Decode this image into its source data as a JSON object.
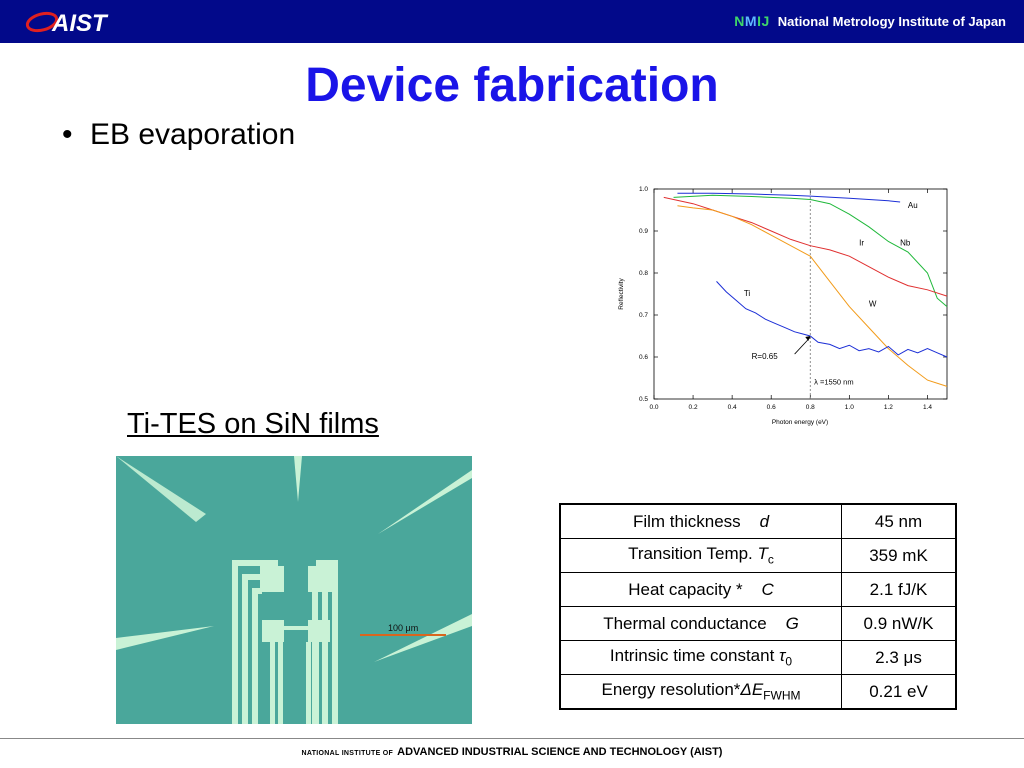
{
  "header": {
    "logo_text": "AIST",
    "nmij_mark": "NMIJ",
    "nmij_name": "National Metrology Institute of Japan"
  },
  "title": "Device fabrication",
  "bullet": "EB evaporation",
  "subheading": "Ti-TES on SiN films",
  "micrograph": {
    "scale_label": "100 μm"
  },
  "table": {
    "rows": [
      {
        "label": "Film thickness",
        "symbol": "d",
        "value": "45 nm"
      },
      {
        "label": "Transition Temp.",
        "symbol": "T",
        "sub": "c",
        "value": "359 mK"
      },
      {
        "label": "Heat capacity *",
        "symbol": "C",
        "value": "2.1 fJ/K"
      },
      {
        "label": "Thermal conductance",
        "symbol": "G",
        "value": "0.9 nW/K"
      },
      {
        "label": "Intrinsic time constant",
        "symbol": "τ",
        "sub": "0",
        "value": "2.3 μs"
      },
      {
        "label": "Energy resolution*",
        "symbol": "ΔE",
        "sub": "FWHM",
        "value": "0.21 eV"
      }
    ]
  },
  "footer": {
    "small": "NATIONAL INSTITUTE OF",
    "main": "ADVANCED INDUSTRIAL SCIENCE AND TECHNOLOGY (AIST)"
  },
  "colors": {
    "header_bg": "#02098a",
    "title": "#1a14e8",
    "micrograph_bg": "#4aa79b"
  },
  "chart_data": {
    "type": "line",
    "xlabel": "Photon energy (eV)",
    "ylabel": "Reflectivity",
    "xlim": [
      0.0,
      1.5
    ],
    "ylim": [
      0.5,
      1.0
    ],
    "xticks": [
      "0.0",
      "0.2",
      "0.4",
      "0.6",
      "0.8",
      "1.0",
      "1.2",
      "1.4"
    ],
    "yticks": [
      "0.5",
      "0.6",
      "0.7",
      "0.8",
      "0.9",
      "1.0"
    ],
    "marker_line_x": 0.8,
    "annotations": {
      "r_label": "R=0.65",
      "lambda_label": "λ =1550 nm"
    },
    "series": [
      {
        "name": "Au",
        "color": "#1c2fd6",
        "x": [
          0.12,
          0.3,
          0.5,
          0.7,
          0.8,
          1.0,
          1.2,
          1.26
        ],
        "y": [
          0.99,
          0.99,
          0.988,
          0.985,
          0.983,
          0.978,
          0.972,
          0.969
        ]
      },
      {
        "name": "Nb",
        "color": "#1fb83a",
        "x": [
          0.1,
          0.3,
          0.5,
          0.7,
          0.8,
          0.9,
          1.0,
          1.1,
          1.2,
          1.3,
          1.4,
          1.45,
          1.5
        ],
        "y": [
          0.98,
          0.985,
          0.982,
          0.978,
          0.975,
          0.965,
          0.94,
          0.91,
          0.875,
          0.85,
          0.8,
          0.74,
          0.72
        ]
      },
      {
        "name": "Ir",
        "color": "#e03030",
        "x": [
          0.05,
          0.2,
          0.3,
          0.4,
          0.5,
          0.6,
          0.7,
          0.8,
          0.9,
          1.0,
          1.1,
          1.2,
          1.3,
          1.4,
          1.5
        ],
        "y": [
          0.98,
          0.965,
          0.95,
          0.935,
          0.92,
          0.9,
          0.88,
          0.865,
          0.855,
          0.84,
          0.815,
          0.79,
          0.77,
          0.76,
          0.745
        ]
      },
      {
        "name": "W",
        "color": "#f29b1a",
        "x": [
          0.12,
          0.2,
          0.3,
          0.4,
          0.5,
          0.6,
          0.7,
          0.8,
          0.9,
          1.0,
          1.1,
          1.2,
          1.3,
          1.4,
          1.5
        ],
        "y": [
          0.96,
          0.955,
          0.95,
          0.935,
          0.915,
          0.89,
          0.865,
          0.84,
          0.78,
          0.72,
          0.67,
          0.62,
          0.58,
          0.545,
          0.53
        ]
      },
      {
        "name": "Ti",
        "color": "#1c2fd6",
        "x": [
          0.32,
          0.37,
          0.42,
          0.47,
          0.52,
          0.57,
          0.62,
          0.67,
          0.72,
          0.76,
          0.8,
          0.84,
          0.9,
          0.95,
          1.0,
          1.05,
          1.1,
          1.15,
          1.2,
          1.25,
          1.3,
          1.35,
          1.4,
          1.45,
          1.5
        ],
        "y": [
          0.78,
          0.755,
          0.735,
          0.715,
          0.705,
          0.69,
          0.68,
          0.67,
          0.66,
          0.655,
          0.65,
          0.635,
          0.63,
          0.62,
          0.628,
          0.615,
          0.62,
          0.612,
          0.625,
          0.605,
          0.618,
          0.61,
          0.62,
          0.61,
          0.6
        ]
      }
    ]
  }
}
